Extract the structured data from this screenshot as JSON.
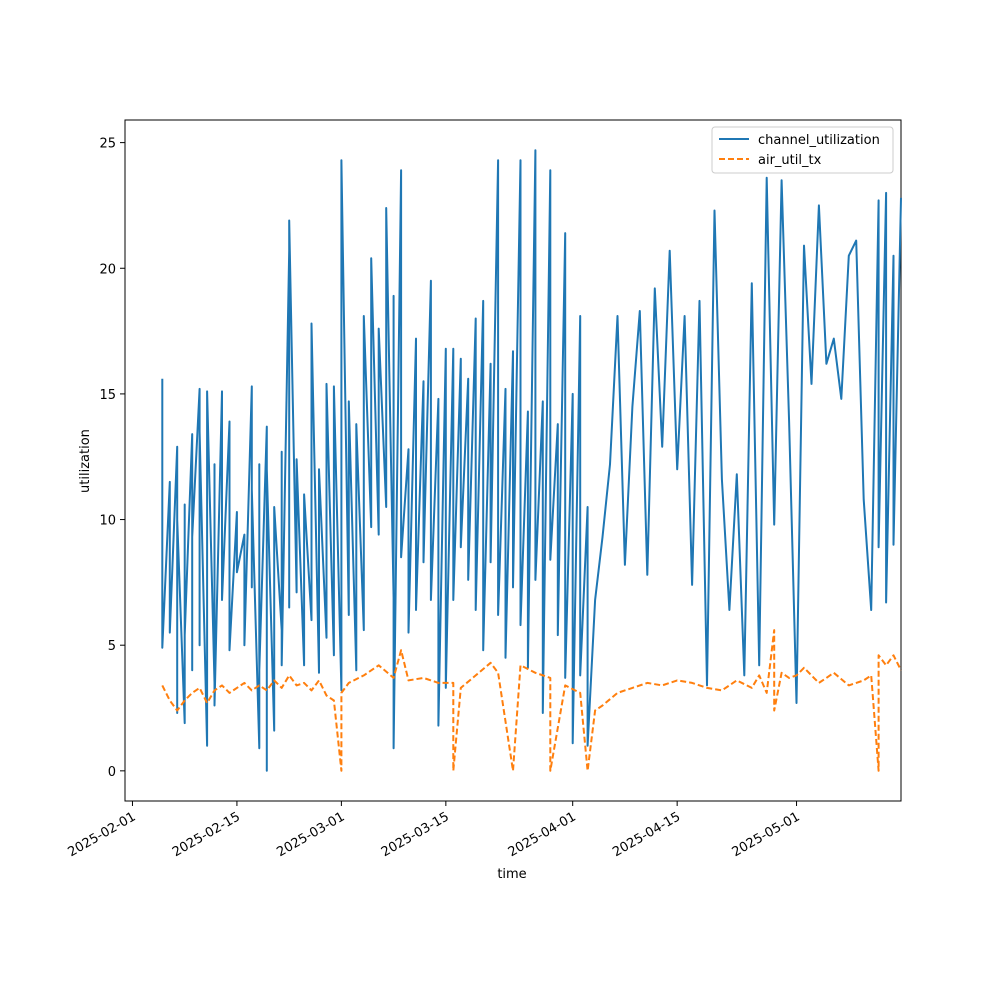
{
  "chart_data": {
    "type": "line",
    "xlabel": "time",
    "ylabel": "utilization",
    "x_range": [
      "2025-01-31",
      "2025-05-15"
    ],
    "ylim": [
      -1.2,
      25.9
    ],
    "x_ticks": [
      "2025-02-01",
      "2025-02-15",
      "2025-03-01",
      "2025-03-15",
      "2025-04-01",
      "2025-04-15",
      "2025-05-01"
    ],
    "y_ticks": [
      0,
      5,
      10,
      15,
      20,
      25
    ],
    "grid": false,
    "legend_position": "top-right",
    "series": [
      {
        "name": "channel_utilization",
        "color": "#1f77b4",
        "style": "solid",
        "points": [
          [
            "2025-02-05",
            15.6
          ],
          [
            "2025-02-05",
            4.9
          ],
          [
            "2025-02-06",
            11.5
          ],
          [
            "2025-02-06",
            5.5
          ],
          [
            "2025-02-07",
            12.9
          ],
          [
            "2025-02-07",
            2.3
          ],
          [
            "2025-02-07",
            10.0
          ],
          [
            "2025-02-08",
            1.9
          ],
          [
            "2025-02-08",
            10.6
          ],
          [
            "2025-02-08",
            5.4
          ],
          [
            "2025-02-09",
            13.4
          ],
          [
            "2025-02-09",
            4.0
          ],
          [
            "2025-02-09",
            9.3
          ],
          [
            "2025-02-10",
            15.2
          ],
          [
            "2025-02-10",
            5.0
          ],
          [
            "2025-02-10",
            13.5
          ],
          [
            "2025-02-11",
            1.0
          ],
          [
            "2025-02-11",
            15.1
          ],
          [
            "2025-02-12",
            3.5
          ],
          [
            "2025-02-12",
            12.2
          ],
          [
            "2025-02-12",
            2.6
          ],
          [
            "2025-02-13",
            15.1
          ],
          [
            "2025-02-13",
            6.8
          ],
          [
            "2025-02-14",
            13.9
          ],
          [
            "2025-02-14",
            4.8
          ],
          [
            "2025-02-15",
            10.3
          ],
          [
            "2025-02-15",
            7.9
          ],
          [
            "2025-02-16",
            9.4
          ],
          [
            "2025-02-16",
            5.0
          ],
          [
            "2025-02-17",
            15.3
          ],
          [
            "2025-02-17",
            7.3
          ],
          [
            "2025-02-17",
            11.2
          ],
          [
            "2025-02-18",
            0.9
          ],
          [
            "2025-02-18",
            12.2
          ],
          [
            "2025-02-18",
            4.0
          ],
          [
            "2025-02-19",
            13.7
          ],
          [
            "2025-02-19",
            0.0
          ],
          [
            "2025-02-19",
            12.0
          ],
          [
            "2025-02-20",
            1.6
          ],
          [
            "2025-02-20",
            10.5
          ],
          [
            "2025-02-21",
            5.6
          ],
          [
            "2025-02-21",
            12.7
          ],
          [
            "2025-02-21",
            4.2
          ],
          [
            "2025-02-22",
            20.7
          ],
          [
            "2025-02-22",
            6.5
          ],
          [
            "2025-02-22",
            21.9
          ],
          [
            "2025-02-23",
            7.1
          ],
          [
            "2025-02-23",
            12.4
          ],
          [
            "2025-02-24",
            4.2
          ],
          [
            "2025-02-24",
            11.0
          ],
          [
            "2025-02-25",
            6.0
          ],
          [
            "2025-02-25",
            17.8
          ],
          [
            "2025-02-26",
            3.9
          ],
          [
            "2025-02-26",
            12.0
          ],
          [
            "2025-02-27",
            5.3
          ],
          [
            "2025-02-27",
            15.4
          ],
          [
            "2025-02-28",
            4.6
          ],
          [
            "2025-02-28",
            15.3
          ],
          [
            "2025-03-01",
            3.2
          ],
          [
            "2025-03-01",
            24.3
          ],
          [
            "2025-03-02",
            6.2
          ],
          [
            "2025-03-02",
            14.7
          ],
          [
            "2025-03-03",
            4.0
          ],
          [
            "2025-03-03",
            13.8
          ],
          [
            "2025-03-04",
            5.6
          ],
          [
            "2025-03-04",
            18.1
          ],
          [
            "2025-03-05",
            9.7
          ],
          [
            "2025-03-05",
            20.4
          ],
          [
            "2025-03-06",
            9.4
          ],
          [
            "2025-03-06",
            17.6
          ],
          [
            "2025-03-07",
            10.5
          ],
          [
            "2025-03-07",
            22.4
          ],
          [
            "2025-03-08",
            6.9
          ],
          [
            "2025-03-08",
            18.9
          ],
          [
            "2025-03-08",
            0.9
          ],
          [
            "2025-03-09",
            23.9
          ],
          [
            "2025-03-09",
            8.5
          ],
          [
            "2025-03-10",
            12.8
          ],
          [
            "2025-03-10",
            5.5
          ],
          [
            "2025-03-11",
            17.2
          ],
          [
            "2025-03-11",
            6.4
          ],
          [
            "2025-03-12",
            15.5
          ],
          [
            "2025-03-12",
            8.3
          ],
          [
            "2025-03-13",
            19.5
          ],
          [
            "2025-03-13",
            6.8
          ],
          [
            "2025-03-14",
            14.8
          ],
          [
            "2025-03-14",
            1.8
          ],
          [
            "2025-03-15",
            16.8
          ],
          [
            "2025-03-15",
            3.3
          ],
          [
            "2025-03-16",
            16.8
          ],
          [
            "2025-03-16",
            6.8
          ],
          [
            "2025-03-17",
            16.4
          ],
          [
            "2025-03-17",
            8.9
          ],
          [
            "2025-03-18",
            15.6
          ],
          [
            "2025-03-18",
            7.6
          ],
          [
            "2025-03-19",
            18.0
          ],
          [
            "2025-03-19",
            6.4
          ],
          [
            "2025-03-20",
            18.7
          ],
          [
            "2025-03-20",
            4.8
          ],
          [
            "2025-03-21",
            16.2
          ],
          [
            "2025-03-21",
            8.3
          ],
          [
            "2025-03-22",
            24.3
          ],
          [
            "2025-03-22",
            6.2
          ],
          [
            "2025-03-23",
            15.2
          ],
          [
            "2025-03-23",
            4.5
          ],
          [
            "2025-03-24",
            16.7
          ],
          [
            "2025-03-24",
            7.3
          ],
          [
            "2025-03-25",
            24.3
          ],
          [
            "2025-03-25",
            5.8
          ],
          [
            "2025-03-26",
            14.3
          ],
          [
            "2025-03-26",
            4.1
          ],
          [
            "2025-03-27",
            24.7
          ],
          [
            "2025-03-27",
            7.6
          ],
          [
            "2025-03-28",
            14.7
          ],
          [
            "2025-03-28",
            2.3
          ],
          [
            "2025-03-29",
            23.9
          ],
          [
            "2025-03-29",
            8.4
          ],
          [
            "2025-03-30",
            13.8
          ],
          [
            "2025-03-30",
            5.4
          ],
          [
            "2025-03-31",
            21.4
          ],
          [
            "2025-03-31",
            3.7
          ],
          [
            "2025-04-01",
            15.0
          ],
          [
            "2025-04-01",
            1.1
          ],
          [
            "2025-04-02",
            18.1
          ],
          [
            "2025-04-02",
            3.8
          ],
          [
            "2025-04-03",
            10.5
          ],
          [
            "2025-04-03",
            1.0
          ],
          [
            "2025-04-04",
            6.8
          ],
          [
            "2025-04-05",
            9.3
          ],
          [
            "2025-04-06",
            12.2
          ],
          [
            "2025-04-07",
            18.1
          ],
          [
            "2025-04-08",
            8.2
          ],
          [
            "2025-04-09",
            14.5
          ],
          [
            "2025-04-10",
            18.3
          ],
          [
            "2025-04-11",
            7.8
          ],
          [
            "2025-04-12",
            19.2
          ],
          [
            "2025-04-13",
            12.9
          ],
          [
            "2025-04-14",
            20.7
          ],
          [
            "2025-04-15",
            12.0
          ],
          [
            "2025-04-16",
            18.1
          ],
          [
            "2025-04-17",
            7.4
          ],
          [
            "2025-04-18",
            18.7
          ],
          [
            "2025-04-19",
            3.4
          ],
          [
            "2025-04-20",
            22.3
          ],
          [
            "2025-04-21",
            11.6
          ],
          [
            "2025-04-22",
            6.4
          ],
          [
            "2025-04-23",
            11.8
          ],
          [
            "2025-04-24",
            3.8
          ],
          [
            "2025-04-25",
            19.4
          ],
          [
            "2025-04-26",
            4.2
          ],
          [
            "2025-04-27",
            23.6
          ],
          [
            "2025-04-28",
            9.8
          ],
          [
            "2025-04-29",
            23.5
          ],
          [
            "2025-04-30",
            13.9
          ],
          [
            "2025-05-01",
            2.7
          ],
          [
            "2025-05-02",
            20.9
          ],
          [
            "2025-05-03",
            15.4
          ],
          [
            "2025-05-04",
            22.5
          ],
          [
            "2025-05-05",
            16.2
          ],
          [
            "2025-05-06",
            17.2
          ],
          [
            "2025-05-07",
            14.8
          ],
          [
            "2025-05-08",
            20.5
          ],
          [
            "2025-05-09",
            21.1
          ],
          [
            "2025-05-10",
            10.8
          ],
          [
            "2025-05-11",
            6.4
          ],
          [
            "2025-05-12",
            22.7
          ],
          [
            "2025-05-12",
            8.9
          ],
          [
            "2025-05-13",
            23.0
          ],
          [
            "2025-05-13",
            6.7
          ],
          [
            "2025-05-14",
            20.5
          ],
          [
            "2025-05-14",
            9.0
          ],
          [
            "2025-05-15",
            22.8
          ]
        ]
      },
      {
        "name": "air_util_tx",
        "color": "#ff7f0e",
        "style": "dashed",
        "points": [
          [
            "2025-02-05",
            3.4
          ],
          [
            "2025-02-06",
            2.8
          ],
          [
            "2025-02-07",
            2.4
          ],
          [
            "2025-02-08",
            2.8
          ],
          [
            "2025-02-09",
            3.1
          ],
          [
            "2025-02-10",
            3.3
          ],
          [
            "2025-02-11",
            2.7
          ],
          [
            "2025-02-12",
            3.2
          ],
          [
            "2025-02-13",
            3.4
          ],
          [
            "2025-02-14",
            3.1
          ],
          [
            "2025-02-15",
            3.3
          ],
          [
            "2025-02-16",
            3.5
          ],
          [
            "2025-02-17",
            3.2
          ],
          [
            "2025-02-18",
            3.4
          ],
          [
            "2025-02-19",
            3.2
          ],
          [
            "2025-02-20",
            3.6
          ],
          [
            "2025-02-21",
            3.3
          ],
          [
            "2025-02-22",
            3.8
          ],
          [
            "2025-02-23",
            3.4
          ],
          [
            "2025-02-24",
            3.5
          ],
          [
            "2025-02-25",
            3.2
          ],
          [
            "2025-02-26",
            3.6
          ],
          [
            "2025-02-27",
            3.0
          ],
          [
            "2025-02-28",
            2.8
          ],
          [
            "2025-03-01",
            0.0
          ],
          [
            "2025-03-01",
            3.1
          ],
          [
            "2025-03-02",
            3.5
          ],
          [
            "2025-03-04",
            3.8
          ],
          [
            "2025-03-06",
            4.2
          ],
          [
            "2025-03-08",
            3.7
          ],
          [
            "2025-03-09",
            4.8
          ],
          [
            "2025-03-10",
            3.6
          ],
          [
            "2025-03-12",
            3.7
          ],
          [
            "2025-03-14",
            3.5
          ],
          [
            "2025-03-16",
            3.5
          ],
          [
            "2025-03-16",
            0.0
          ],
          [
            "2025-03-17",
            3.3
          ],
          [
            "2025-03-19",
            3.8
          ],
          [
            "2025-03-21",
            4.3
          ],
          [
            "2025-03-22",
            3.9
          ],
          [
            "2025-03-24",
            0.0
          ],
          [
            "2025-03-25",
            4.2
          ],
          [
            "2025-03-27",
            3.9
          ],
          [
            "2025-03-29",
            3.7
          ],
          [
            "2025-03-29",
            0.0
          ],
          [
            "2025-03-31",
            3.4
          ],
          [
            "2025-04-02",
            3.1
          ],
          [
            "2025-04-03",
            0.0
          ],
          [
            "2025-04-04",
            2.4
          ],
          [
            "2025-04-05",
            2.6
          ],
          [
            "2025-04-07",
            3.1
          ],
          [
            "2025-04-09",
            3.3
          ],
          [
            "2025-04-11",
            3.5
          ],
          [
            "2025-04-13",
            3.4
          ],
          [
            "2025-04-15",
            3.6
          ],
          [
            "2025-04-17",
            3.5
          ],
          [
            "2025-04-19",
            3.3
          ],
          [
            "2025-04-21",
            3.2
          ],
          [
            "2025-04-23",
            3.6
          ],
          [
            "2025-04-25",
            3.3
          ],
          [
            "2025-04-26",
            3.8
          ],
          [
            "2025-04-27",
            3.1
          ],
          [
            "2025-04-28",
            5.6
          ],
          [
            "2025-04-28",
            2.4
          ],
          [
            "2025-04-29",
            3.9
          ],
          [
            "2025-04-30",
            3.7
          ],
          [
            "2025-05-01",
            3.8
          ],
          [
            "2025-05-02",
            4.1
          ],
          [
            "2025-05-03",
            3.8
          ],
          [
            "2025-05-04",
            3.5
          ],
          [
            "2025-05-05",
            3.7
          ],
          [
            "2025-05-06",
            3.9
          ],
          [
            "2025-05-08",
            3.4
          ],
          [
            "2025-05-10",
            3.6
          ],
          [
            "2025-05-11",
            3.8
          ],
          [
            "2025-05-12",
            0.0
          ],
          [
            "2025-05-12",
            4.6
          ],
          [
            "2025-05-13",
            4.2
          ],
          [
            "2025-05-14",
            4.6
          ],
          [
            "2025-05-15",
            4.0
          ]
        ]
      }
    ]
  }
}
